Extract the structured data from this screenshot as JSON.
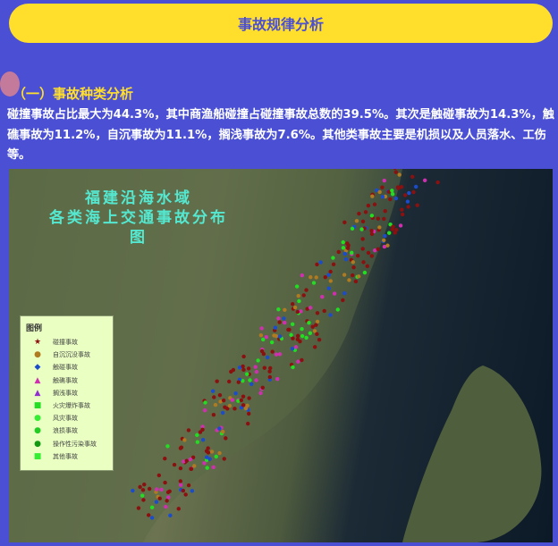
{
  "header": {
    "title": "事故规律分析"
  },
  "section": {
    "title": "（一）事故种类分析",
    "paragraph": "碰撞事故占比最大为44.3%，其中商渔船碰撞占碰撞事故总数的39.5%。其次是触碰事故为14.3%，触礁事故为11.2%，自沉事故为11.1%，搁浅事故为7.6%。其他类事故主要是机损以及人员落水、工伤等。"
  },
  "map": {
    "title_line1": "福建沿海水域",
    "title_line2": "各类海上交通事故分布图",
    "legend": {
      "title": "图例",
      "items": [
        {
          "label": "碰撞事故",
          "symbol": "★",
          "color": "#8b1010"
        },
        {
          "label": "自沉沉没事故",
          "symbol": "●",
          "color": "#b07a20"
        },
        {
          "label": "触碰事故",
          "symbol": "◆",
          "color": "#1a4ccc"
        },
        {
          "label": "触礁事故",
          "symbol": "▲",
          "color": "#d030b0"
        },
        {
          "label": "搁浅事故",
          "symbol": "▲",
          "color": "#9030d0"
        },
        {
          "label": "火灾爆炸事故",
          "symbol": "■",
          "color": "#22dd22"
        },
        {
          "label": "风灾事故",
          "symbol": "●",
          "color": "#33ee33"
        },
        {
          "label": "浪损事故",
          "symbol": "●",
          "color": "#22cc22"
        },
        {
          "label": "操作性污染事故",
          "symbol": "●",
          "color": "#119911"
        },
        {
          "label": "其他事故",
          "symbol": "■",
          "color": "#33ee33"
        }
      ]
    }
  }
}
